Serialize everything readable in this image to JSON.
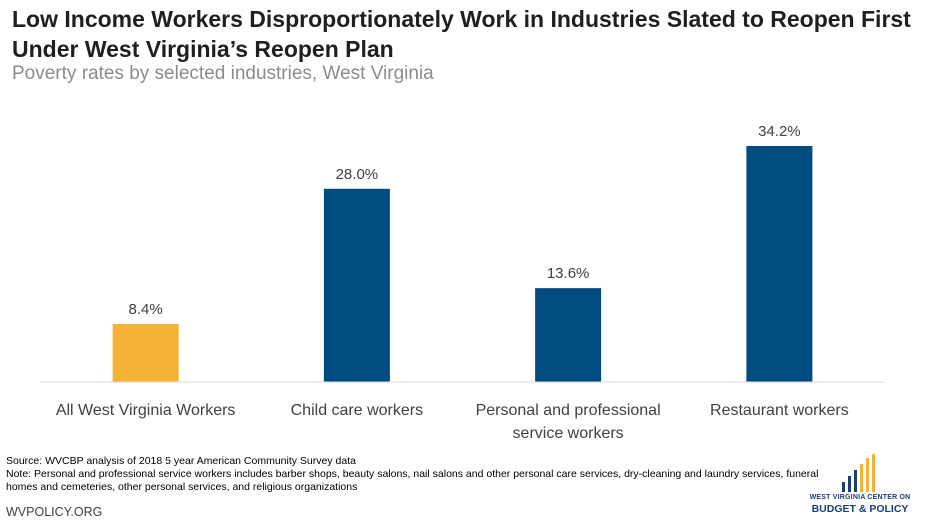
{
  "header": {
    "title": "Low Income Workers Disproportionately Work in Industries Slated to Reopen First Under West Virginia’s Reopen Plan",
    "subtitle": "Poverty rates by selected industries, West Virginia"
  },
  "chart_data": {
    "type": "bar",
    "categories": [
      [
        "All West Virginia Workers"
      ],
      [
        "Child care workers"
      ],
      [
        "Personal and professional",
        "service workers"
      ],
      [
        "Restaurant workers"
      ]
    ],
    "values": [
      8.4,
      28.0,
      13.6,
      34.2
    ],
    "value_labels": [
      "8.4%",
      "28.0%",
      "13.6%",
      "34.2%"
    ],
    "colors": [
      "#f5b335",
      "#004b80",
      "#004b80",
      "#004b80"
    ],
    "ylim": [
      0,
      40
    ],
    "grid": false,
    "xlabel": "",
    "ylabel": ""
  },
  "footer": {
    "source": "Source: WVCBP analysis of 2018 5 year American Community Survey data",
    "note": "Note: Personal and professional service workers includes barber shops, beauty salons, nail salons and other personal care services, dry-cleaning and laundry services, funeral homes and cemeteries,  other personal services, and religious organizations",
    "website": "WVPOLICY.ORG",
    "logo_line1": "WEST VIRGINIA CENTER ON",
    "logo_line2": "BUDGET & POLICY",
    "logo_colors": [
      "#1b3f73",
      "#f5b335"
    ]
  }
}
